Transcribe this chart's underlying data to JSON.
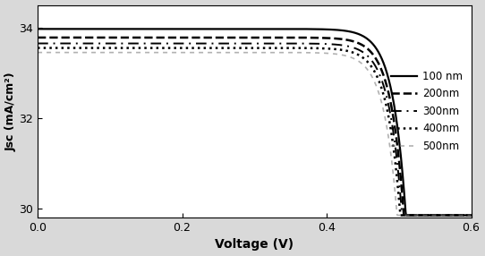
{
  "title": "",
  "xlabel": "Voltage (V)",
  "ylabel": "Jsc (mA/cm²)",
  "xlim": [
    0,
    0.6
  ],
  "ylim": [
    29.8,
    34.5
  ],
  "yticks": [
    30,
    32,
    34
  ],
  "xticks": [
    0,
    0.2,
    0.4,
    0.6
  ],
  "series": [
    {
      "label": "100 nm",
      "color": "#000000",
      "linestyle": "solid",
      "linewidth": 1.6,
      "Jsc0": 33.97,
      "Voc": 0.548,
      "knee_sharpness": 55
    },
    {
      "label": "200nm",
      "color": "#000000",
      "linestyle": "dashed",
      "linewidth": 1.8,
      "Jsc0": 33.78,
      "Voc": 0.546,
      "knee_sharpness": 55
    },
    {
      "label": "300nm",
      "color": "#000000",
      "linestyle": "dashdot",
      "linewidth": 1.4,
      "Jsc0": 33.65,
      "Voc": 0.544,
      "knee_sharpness": 55
    },
    {
      "label": "400nm",
      "color": "#000000",
      "linestyle": "dotted",
      "linewidth": 1.8,
      "Jsc0": 33.55,
      "Voc": 0.542,
      "knee_sharpness": 55
    },
    {
      "label": "500nm",
      "color": "#888888",
      "linestyle": "dashdot",
      "linewidth": 1.2,
      "Jsc0": 33.45,
      "Voc": 0.538,
      "knee_sharpness": 55
    }
  ],
  "legend_loc": "center right",
  "figure_bg": "#d9d9d9",
  "axes_bg": "#ffffff"
}
